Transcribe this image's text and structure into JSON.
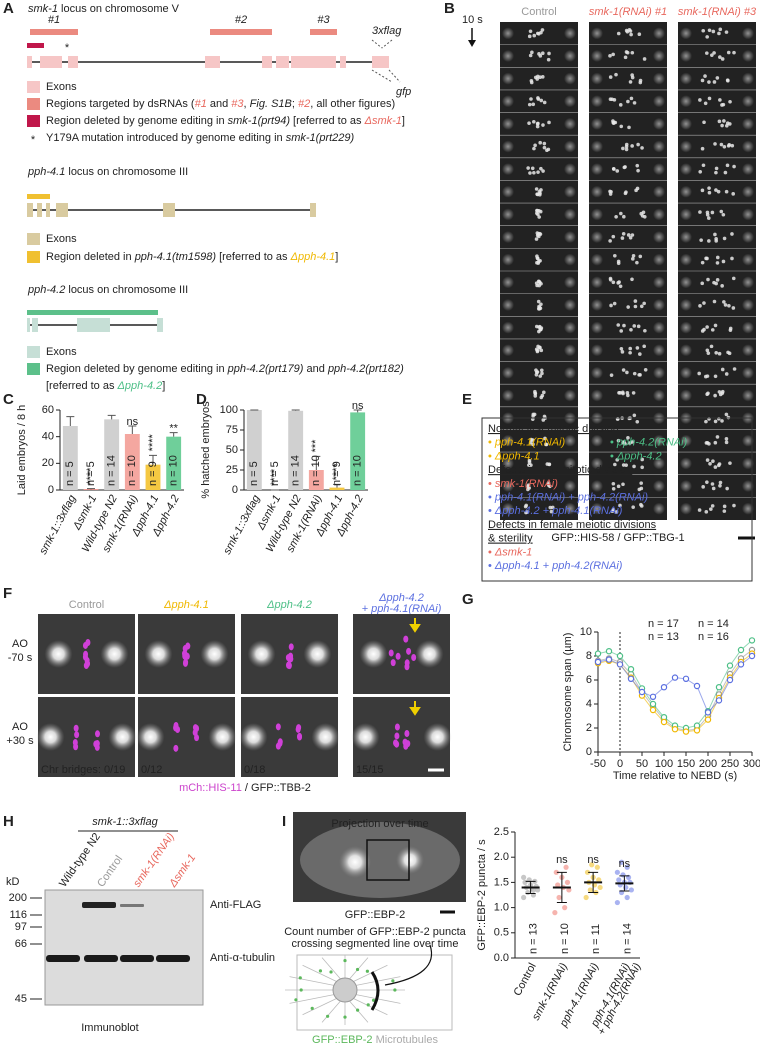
{
  "panels": {
    "A": {
      "label": "A",
      "smk1_title": [
        {
          "t": "smk-1",
          "i": 1
        },
        {
          "t": " locus on chromosome V"
        }
      ],
      "regions": [
        "#1",
        "#2",
        "#3"
      ],
      "flag": "3xflag",
      "gfp": "gfp",
      "star": "*",
      "smk1_legend": [
        [
          {
            "t": "Exons"
          }
        ],
        [
          {
            "t": "Regions targeted by dsRNAs ("
          },
          {
            "t": "#1",
            "c": "#e8685e",
            "i": 1
          },
          {
            "t": " and "
          },
          {
            "t": "#3",
            "c": "#e8685e",
            "i": 1
          },
          {
            "t": ", "
          },
          {
            "t": "Fig. S1B",
            "i": 1
          },
          {
            "t": "; "
          },
          {
            "t": "#2",
            "c": "#e8685e",
            "i": 1
          },
          {
            "t": ", all other figures)"
          }
        ],
        [
          {
            "t": "Region deleted by genome editing in "
          },
          {
            "t": "smk-1(prt94)",
            "i": 1
          },
          {
            "t": " [referred to as "
          },
          {
            "t": "Δsmk-1",
            "c": "#e8685e",
            "i": 1
          },
          {
            "t": "]"
          }
        ],
        [
          {
            "t": "Y179A mutation introduced by genome editing in "
          },
          {
            "t": "smk-1(prt229)",
            "i": 1
          }
        ]
      ],
      "pph41_title": [
        {
          "t": "pph-4.1",
          "i": 1
        },
        {
          "t": " locus on chromosome III"
        }
      ],
      "pph41_legend": [
        [
          {
            "t": "Exons"
          }
        ],
        [
          {
            "t": "Region deleted in "
          },
          {
            "t": "pph-4.1(tm1598)",
            "i": 1
          },
          {
            "t": " [referred to as "
          },
          {
            "t": "Δpph-4.1",
            "c": "#f0b800",
            "i": 1
          },
          {
            "t": "]"
          }
        ]
      ],
      "pph42_title": [
        {
          "t": "pph-4.2",
          "i": 1
        },
        {
          "t": " locus on chromosome III"
        }
      ],
      "pph42_legend": [
        [
          {
            "t": "Exons"
          }
        ],
        [
          {
            "t": "Region deleted by genome editing in "
          },
          {
            "t": "pph-4.2(prt179)",
            "i": 1
          },
          {
            "t": " and "
          },
          {
            "t": "pph-4.2(prt182)",
            "i": 1
          }
        ],
        [
          {
            "t": "[referred to as "
          },
          {
            "t": "Δpph-4.2",
            "c": "#4cbf86",
            "i": 1
          },
          {
            "t": "]"
          }
        ]
      ]
    },
    "B": {
      "label": "B",
      "columns": [
        [
          {
            "t": "Control",
            "c": "#999999"
          }
        ],
        [
          {
            "t": "smk-1(RNAi) #1",
            "c": "#e8685e",
            "i": 1
          }
        ],
        [
          {
            "t": "smk-1(RNAi) #3",
            "c": "#e8685e",
            "i": 1
          }
        ]
      ],
      "interval": "10 s",
      "caption": "GFP::HIS-58 / GFP::TBG-1"
    },
    "C": {
      "label": "C",
      "chart": {
        "type": "bar",
        "ylabel": "Laid embryos / 8 h",
        "categories": [
          "smk-1::3xflag",
          "Δsmk-1",
          "Wild-type N2",
          "smk-1(RNAi)",
          "Δpph-4.1",
          "Δpph-4.2"
        ],
        "values": [
          48,
          0.5,
          53,
          42,
          19,
          40
        ],
        "errors": [
          7,
          0.5,
          3,
          6,
          7,
          3
        ],
        "colors": [
          "#d0d0d0",
          "#e8685e",
          "#d0d0d0",
          "#f4a7a0",
          "#f5c842",
          "#6fcf9a"
        ],
        "label_colors": [
          "#999999",
          "#e8685e",
          "#999999",
          "#e8685e",
          "#f0b800",
          "#4cbf86"
        ],
        "n_labels": [
          "n = 5",
          "n = 5",
          "n = 14",
          "n = 10",
          "n = 9",
          "n = 10"
        ],
        "significance": [
          null,
          "****",
          null,
          "ns",
          "****",
          "**"
        ],
        "ylim": [
          0,
          60
        ],
        "yticks": [
          0,
          20,
          40,
          60
        ]
      }
    },
    "D": {
      "label": "D",
      "chart": {
        "type": "bar",
        "ylabel": "% hatched embryos",
        "categories": [
          "smk-1::3xflag",
          "Δsmk-1",
          "Wild-type N2",
          "smk-1(RNAi)",
          "Δpph-4.1",
          "Δpph-4.2"
        ],
        "values": [
          100,
          0,
          99,
          25,
          3,
          97
        ],
        "errors": [
          0,
          0,
          1,
          17,
          4,
          3
        ],
        "colors": [
          "#d0d0d0",
          "#e8685e",
          "#d0d0d0",
          "#f4a7a0",
          "#f5c842",
          "#6fcf9a"
        ],
        "label_colors": [
          "#999999",
          "#e8685e",
          "#999999",
          "#e8685e",
          "#f0b800",
          "#4cbf86"
        ],
        "n_labels": [
          "n = 5",
          "n = 5",
          "n = 14",
          "n = 10",
          "n = 9",
          "n = 10"
        ],
        "significance": [
          null,
          "****",
          null,
          "***",
          "****",
          "ns"
        ],
        "ylim": [
          0,
          100
        ],
        "yticks": [
          0,
          25,
          50,
          75,
          100
        ]
      }
    },
    "E": {
      "label": "E",
      "rows": [
        {
          "cells": [
            [
              {
                "t": "Normal first mitotic division",
                "u": 1
              }
            ]
          ]
        },
        {
          "cells": [
            [
              {
                "t": "• ",
                "c": "#f0b800"
              },
              {
                "t": "pph-4.1(RNAi)",
                "c": "#f0b800",
                "i": 1
              }
            ],
            [
              {
                "t": "• ",
                "c": "#4cbf86"
              },
              {
                "t": "pph-4.2(RNAi)",
                "c": "#4cbf86",
                "i": 1
              }
            ]
          ]
        },
        {
          "cells": [
            [
              {
                "t": "• ",
                "c": "#f0b800"
              },
              {
                "t": "Δpph-4.1",
                "c": "#f0b800",
                "i": 1
              }
            ],
            [
              {
                "t": "• ",
                "c": "#4cbf86"
              },
              {
                "t": "Δpph-4.2",
                "c": "#4cbf86",
                "i": 1
              }
            ]
          ]
        },
        {
          "cells": [
            [
              {
                "t": "Defects in first mitotic division",
                "u": 1
              }
            ]
          ]
        },
        {
          "cells": [
            [
              {
                "t": "• ",
                "c": "#e8685e"
              },
              {
                "t": "smk-1(RNAi)",
                "c": "#e8685e",
                "i": 1
              }
            ]
          ]
        },
        {
          "cells": [
            [
              {
                "t": "• ",
                "c": "#5b6fe0"
              },
              {
                "t": "pph-4.1(RNAi) + pph-4.2(RNAi)",
                "c": "#5b6fe0",
                "i": 1
              }
            ]
          ]
        },
        {
          "cells": [
            [
              {
                "t": "• ",
                "c": "#5b6fe0"
              },
              {
                "t": "Δpph-4.2 + pph-4.1(RNAi)",
                "c": "#5b6fe0",
                "i": 1
              }
            ]
          ]
        },
        {
          "cells": [
            [
              {
                "t": "Defects in female meiotic divisions",
                "u": 1
              }
            ]
          ]
        },
        {
          "cells": [
            [
              {
                "t": "& sterility",
                "u": 1
              }
            ]
          ]
        },
        {
          "cells": [
            [
              {
                "t": "• ",
                "c": "#e8685e"
              },
              {
                "t": "Δsmk-1",
                "c": "#e8685e",
                "i": 1
              }
            ]
          ]
        },
        {
          "cells": [
            [
              {
                "t": "• ",
                "c": "#5b6fe0"
              },
              {
                "t": "Δpph-4.1 + pph-4.2(RNAi)",
                "c": "#5b6fe0",
                "i": 1
              }
            ]
          ]
        }
      ]
    },
    "F": {
      "label": "F",
      "columns": [
        [
          {
            "t": "Control",
            "c": "#999999"
          }
        ],
        [
          {
            "t": "Δpph-4.1",
            "c": "#f0b800",
            "i": 1
          }
        ],
        [
          {
            "t": "Δpph-4.2",
            "c": "#4cbf86",
            "i": 1
          }
        ],
        [
          {
            "t": "Δpph-4.2",
            "c": "#5b6fe0",
            "i": 1
          }
        ]
      ],
      "column4_line2": [
        {
          "t": "+ pph-4.1(RNAi)",
          "c": "#5b6fe0",
          "i": 1
        }
      ],
      "rows": [
        [
          "AO",
          "-70 s"
        ],
        [
          "AO",
          "+30 s"
        ]
      ],
      "bridges": [
        "Chr bridges: 0/19",
        "0/12",
        "0/18",
        "15/15"
      ],
      "caption": [
        {
          "t": "mCh::HIS-11",
          "c": "#cc44cc"
        },
        {
          "t": " / GFP::TBB-2"
        }
      ]
    },
    "G": {
      "label": "G",
      "chart": {
        "type": "line",
        "xlabel": "Time relative to NEBD (s)",
        "ylabel": "Chromosome span (µm)",
        "x": [
          -50,
          -25,
          0,
          25,
          50,
          75,
          100,
          125,
          150,
          175,
          200,
          225,
          250,
          275,
          300
        ],
        "series": [
          {
            "name": "n = 17",
            "color": "#9a9a9a",
            "values": [
              7.6,
              7.8,
              7.5,
              6.5,
              5.0,
              3.8,
              2.7,
              2.0,
              1.8,
              1.9,
              3.0,
              4.8,
              6.5,
              7.8,
              8.5
            ]
          },
          {
            "name": "n = 14",
            "color": "#4cbf86",
            "values": [
              8.2,
              8.4,
              8.0,
              6.9,
              5.3,
              4.0,
              2.9,
              2.2,
              2.0,
              2.2,
              3.4,
              5.4,
              7.2,
              8.5,
              9.3
            ]
          },
          {
            "name": "n = 13",
            "color": "#f0b800",
            "values": [
              7.4,
              7.6,
              7.3,
              6.2,
              4.7,
              3.5,
              2.5,
              1.9,
              1.7,
              1.8,
              2.7,
              4.5,
              6.2,
              7.5,
              8.2
            ]
          },
          {
            "name": "n = 16",
            "color": "#5b6fe0",
            "values": [
              7.5,
              7.7,
              7.3,
              6.1,
              5.0,
              4.6,
              5.4,
              6.2,
              6.1,
              5.5,
              3.3,
              4.3,
              6.0,
              7.3,
              8.0
            ]
          }
        ],
        "xlim": [
          -50,
          300
        ],
        "xticks": [
          -50,
          0,
          50,
          100,
          150,
          200,
          250,
          300
        ],
        "ylim": [
          0,
          10
        ],
        "yticks": [
          0,
          2,
          4,
          6,
          8,
          10
        ]
      }
    },
    "H": {
      "label": "H",
      "group": "smk-1::3xflag",
      "lanes": [
        [
          {
            "t": "Wild-type N2"
          }
        ],
        [
          {
            "t": "Control",
            "c": "#999999"
          }
        ],
        [
          {
            "t": "smk-1(RNAi)",
            "c": "#e8685e",
            "i": 1
          }
        ],
        [
          {
            "t": "Δsmk-1",
            "c": "#e8685e",
            "i": 1
          }
        ]
      ],
      "unit": "kD",
      "markers": [
        "200",
        "116",
        "97",
        "66",
        "45"
      ],
      "antibodies": [
        "Anti-FLAG",
        "Anti-α-tubulin"
      ],
      "caption": "Immunoblot"
    },
    "I": {
      "label": "I",
      "image_title": "Projection over time",
      "image_caption": "GFP::EBP-2",
      "diagram_text": [
        "Count number of GFP::EBP-2 puncta",
        "crossing segmented line over time"
      ],
      "diagram_caption": [
        {
          "t": "GFP::EBP-2",
          "c": "#5cb85c"
        },
        {
          "t": " Microtubules",
          "c": "#aaaaaa"
        }
      ],
      "chart": {
        "type": "dot",
        "ylabel": "GFP::EBP-2 puncta / s",
        "categories": [
          "Control",
          "smk-1(RNAi)",
          "pph-4.1(RNAi)",
          [
            "pph-4.1(RNAi)",
            "+ pph-4.2(RNAi)"
          ]
        ],
        "label_colors": [
          "#999999",
          "#e8685e",
          "#f0b800",
          "#5b6fe0"
        ],
        "colors": [
          "#bdbdbd",
          "#f4a7a0",
          "#f5d36a",
          "#9aa6ee"
        ],
        "points": [
          [
            1.2,
            1.25,
            1.3,
            1.35,
            1.38,
            1.4,
            1.42,
            1.45,
            1.5,
            1.52,
            1.55,
            1.6,
            1.35
          ],
          [
            0.9,
            1.0,
            1.2,
            1.35,
            1.4,
            1.45,
            1.5,
            1.6,
            1.7,
            1.8
          ],
          [
            1.2,
            1.3,
            1.35,
            1.4,
            1.45,
            1.5,
            1.55,
            1.6,
            1.7,
            1.8,
            1.85
          ],
          [
            1.1,
            1.2,
            1.3,
            1.35,
            1.4,
            1.45,
            1.5,
            1.5,
            1.55,
            1.6,
            1.65,
            1.7,
            1.8,
            1.9
          ]
        ],
        "means": [
          1.4,
          1.4,
          1.5,
          1.48
        ],
        "errors": [
          0.12,
          0.3,
          0.2,
          0.15
        ],
        "n_labels": [
          "n = 13",
          "n = 10",
          "n = 11",
          "n = 14"
        ],
        "significance": [
          null,
          "ns",
          "ns",
          "ns"
        ],
        "ylim": [
          0,
          2.5
        ],
        "yticks": [
          {
            "value": 0,
            "label": "0.0"
          },
          {
            "value": 0.5,
            "label": "0.5"
          },
          {
            "value": 1,
            "label": "1.0"
          },
          {
            "value": 1.5,
            "label": "1.5"
          },
          {
            "value": 2,
            "label": "2.0"
          },
          {
            "value": 2.5,
            "label": "2.5"
          }
        ]
      }
    }
  }
}
